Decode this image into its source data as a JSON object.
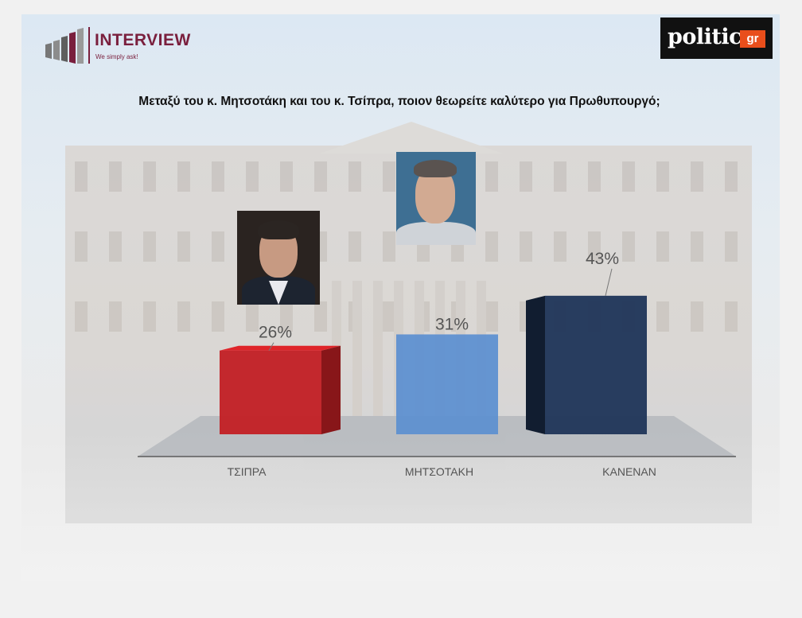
{
  "header": {
    "brand_name": "INTERVIEW",
    "brand_tagline": "We simply ask!",
    "partner_word": "politic",
    "partner_suffix": "gr"
  },
  "chart_data": {
    "type": "bar",
    "title": "Μεταξύ του κ. Μητσοτάκη και του κ. Τσίπρα, ποιον θεωρείτε καλύτερο για Πρωθυπουργό;",
    "categories": [
      "ΤΣΙΠΡΑ",
      "ΜΗΤΣΟΤΑΚΗ",
      "ΚΑΝΕΝΑΝ"
    ],
    "values": [
      26,
      31,
      43
    ],
    "value_labels": [
      "26%",
      "31%",
      "43%"
    ],
    "colors": [
      "#c21f24",
      "#5b8fd0",
      "#1f3558"
    ],
    "ylim": [
      0,
      50
    ],
    "grid": false,
    "legend": "none"
  },
  "photos": [
    {
      "name": "tsipras-photo",
      "bg": "#2a2320",
      "skin": "#c79a82",
      "suit": "#1d2430",
      "shirt": "#e9e9ee"
    },
    {
      "name": "mitsotakis-photo",
      "bg": "#3e6f93",
      "skin": "#d2aa92",
      "suit": "#cfd3d8",
      "shirt": "#ecebea"
    }
  ]
}
